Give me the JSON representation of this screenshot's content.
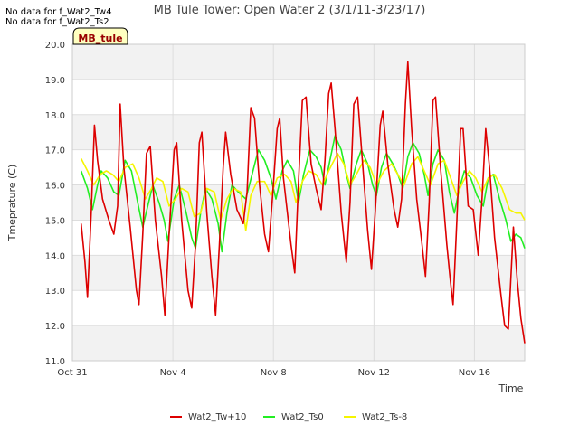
{
  "no_data_notes": [
    "No data for f_Wat2_Tw4",
    "No data for f_Wat2_Ts2"
  ],
  "site_badge": "MB_tule",
  "colors": {
    "tw10": "#dd0000",
    "ts0": "#22ee22",
    "ts8": "#f5f500",
    "band": "#f2f2f2",
    "grid": "#dddddd",
    "badge_bg": "#ffffc0",
    "badge_text": "#990000"
  },
  "chart_data": {
    "type": "line",
    "title": "MB Tule Tower: Open Water 2 (3/1/11-3/23/17)",
    "xlabel": "Time",
    "ylabel": "Tmeprature (C)",
    "xlim": [
      0,
      18
    ],
    "ylim": [
      11.0,
      20.0
    ],
    "yticks": [
      "11.0",
      "12.0",
      "13.0",
      "14.0",
      "15.0",
      "16.0",
      "17.0",
      "18.0",
      "19.0",
      "20.0"
    ],
    "xticks": [
      {
        "label": "Oct 31",
        "day": 0
      },
      {
        "label": "Nov 4",
        "day": 4
      },
      {
        "label": "Nov 8",
        "day": 8
      },
      {
        "label": "Nov 12",
        "day": 12
      },
      {
        "label": "Nov 16",
        "day": 16
      }
    ],
    "grid": true,
    "legend_position": "bottom",
    "series": [
      {
        "name": "Wat2_Tw+10",
        "color": "#dd0000",
        "points": [
          [
            0.35,
            14.9
          ],
          [
            0.5,
            13.8
          ],
          [
            0.6,
            12.8
          ],
          [
            0.75,
            15.2
          ],
          [
            0.88,
            17.7
          ],
          [
            1.0,
            16.7
          ],
          [
            1.2,
            15.6
          ],
          [
            1.45,
            15.0
          ],
          [
            1.65,
            14.6
          ],
          [
            1.8,
            15.4
          ],
          [
            1.9,
            18.3
          ],
          [
            2.05,
            16.5
          ],
          [
            2.3,
            14.8
          ],
          [
            2.55,
            13.0
          ],
          [
            2.65,
            12.6
          ],
          [
            2.8,
            14.6
          ],
          [
            2.95,
            16.9
          ],
          [
            3.1,
            17.1
          ],
          [
            3.3,
            15.0
          ],
          [
            3.55,
            13.4
          ],
          [
            3.68,
            12.3
          ],
          [
            3.85,
            14.6
          ],
          [
            4.05,
            17.0
          ],
          [
            4.15,
            17.2
          ],
          [
            4.35,
            15.0
          ],
          [
            4.6,
            13.0
          ],
          [
            4.75,
            12.5
          ],
          [
            4.9,
            14.3
          ],
          [
            5.05,
            17.2
          ],
          [
            5.15,
            17.5
          ],
          [
            5.35,
            15.2
          ],
          [
            5.55,
            13.4
          ],
          [
            5.7,
            12.3
          ],
          [
            5.85,
            14.3
          ],
          [
            6.0,
            16.5
          ],
          [
            6.1,
            17.5
          ],
          [
            6.3,
            16.3
          ],
          [
            6.55,
            15.3
          ],
          [
            6.8,
            14.9
          ],
          [
            6.95,
            15.8
          ],
          [
            7.1,
            18.2
          ],
          [
            7.25,
            17.9
          ],
          [
            7.45,
            16.0
          ],
          [
            7.65,
            14.6
          ],
          [
            7.8,
            14.1
          ],
          [
            8.0,
            16.0
          ],
          [
            8.15,
            17.6
          ],
          [
            8.25,
            17.9
          ],
          [
            8.4,
            16.2
          ],
          [
            8.7,
            14.3
          ],
          [
            8.85,
            13.5
          ],
          [
            9.0,
            16.1
          ],
          [
            9.15,
            18.4
          ],
          [
            9.3,
            18.5
          ],
          [
            9.5,
            16.6
          ],
          [
            9.7,
            15.9
          ],
          [
            9.9,
            15.3
          ],
          [
            10.05,
            16.7
          ],
          [
            10.2,
            18.6
          ],
          [
            10.3,
            18.9
          ],
          [
            10.45,
            17.6
          ],
          [
            10.7,
            15.2
          ],
          [
            10.9,
            13.8
          ],
          [
            11.05,
            15.5
          ],
          [
            11.2,
            18.3
          ],
          [
            11.35,
            18.5
          ],
          [
            11.55,
            16.6
          ],
          [
            11.75,
            14.7
          ],
          [
            11.9,
            13.6
          ],
          [
            12.05,
            15.2
          ],
          [
            12.25,
            17.7
          ],
          [
            12.35,
            18.1
          ],
          [
            12.55,
            16.6
          ],
          [
            12.8,
            15.3
          ],
          [
            12.95,
            14.8
          ],
          [
            13.1,
            15.6
          ],
          [
            13.25,
            18.3
          ],
          [
            13.35,
            19.5
          ],
          [
            13.5,
            17.6
          ],
          [
            13.7,
            15.6
          ],
          [
            13.9,
            14.4
          ],
          [
            14.05,
            13.4
          ],
          [
            14.2,
            15.5
          ],
          [
            14.35,
            18.4
          ],
          [
            14.45,
            18.5
          ],
          [
            14.65,
            16.5
          ],
          [
            14.9,
            14.3
          ],
          [
            15.05,
            13.2
          ],
          [
            15.15,
            12.6
          ],
          [
            15.3,
            15.0
          ],
          [
            15.45,
            17.6
          ],
          [
            15.55,
            17.6
          ],
          [
            15.75,
            15.4
          ],
          [
            15.95,
            15.3
          ],
          [
            16.15,
            14.0
          ],
          [
            16.3,
            15.6
          ],
          [
            16.45,
            17.6
          ],
          [
            16.6,
            16.5
          ],
          [
            16.8,
            14.5
          ],
          [
            17.05,
            12.9
          ],
          [
            17.2,
            12.0
          ],
          [
            17.35,
            11.9
          ],
          [
            17.55,
            14.8
          ],
          [
            17.7,
            13.3
          ],
          [
            17.85,
            12.2
          ],
          [
            18.0,
            11.5
          ]
        ]
      },
      {
        "name": "Wat2_Ts0",
        "color": "#22ee22",
        "points": [
          [
            0.35,
            16.4
          ],
          [
            0.6,
            15.9
          ],
          [
            0.8,
            15.3
          ],
          [
            1.0,
            16.0
          ],
          [
            1.15,
            16.4
          ],
          [
            1.4,
            16.2
          ],
          [
            1.65,
            15.8
          ],
          [
            1.85,
            15.7
          ],
          [
            2.1,
            16.7
          ],
          [
            2.35,
            16.4
          ],
          [
            2.6,
            15.5
          ],
          [
            2.8,
            14.8
          ],
          [
            3.0,
            15.4
          ],
          [
            3.2,
            16.0
          ],
          [
            3.45,
            15.5
          ],
          [
            3.65,
            15.0
          ],
          [
            3.8,
            14.4
          ],
          [
            4.05,
            15.6
          ],
          [
            4.25,
            16.0
          ],
          [
            4.5,
            15.3
          ],
          [
            4.75,
            14.5
          ],
          [
            4.9,
            14.2
          ],
          [
            5.1,
            15.2
          ],
          [
            5.3,
            15.9
          ],
          [
            5.55,
            15.6
          ],
          [
            5.8,
            14.9
          ],
          [
            5.95,
            14.1
          ],
          [
            6.15,
            15.2
          ],
          [
            6.35,
            16.0
          ],
          [
            6.6,
            15.8
          ],
          [
            6.9,
            15.6
          ],
          [
            7.15,
            16.3
          ],
          [
            7.4,
            17.0
          ],
          [
            7.65,
            16.7
          ],
          [
            7.9,
            16.2
          ],
          [
            8.1,
            15.6
          ],
          [
            8.35,
            16.4
          ],
          [
            8.55,
            16.7
          ],
          [
            8.8,
            16.4
          ],
          [
            9.0,
            15.5
          ],
          [
            9.2,
            16.3
          ],
          [
            9.45,
            17.0
          ],
          [
            9.7,
            16.8
          ],
          [
            9.9,
            16.5
          ],
          [
            10.05,
            16.0
          ],
          [
            10.25,
            16.7
          ],
          [
            10.45,
            17.4
          ],
          [
            10.7,
            17.0
          ],
          [
            10.9,
            16.3
          ],
          [
            11.05,
            15.9
          ],
          [
            11.3,
            16.6
          ],
          [
            11.5,
            17.0
          ],
          [
            11.75,
            16.6
          ],
          [
            11.95,
            16.0
          ],
          [
            12.1,
            15.7
          ],
          [
            12.3,
            16.5
          ],
          [
            12.5,
            16.9
          ],
          [
            12.75,
            16.6
          ],
          [
            12.95,
            16.3
          ],
          [
            13.15,
            15.9
          ],
          [
            13.35,
            16.8
          ],
          [
            13.55,
            17.2
          ],
          [
            13.8,
            16.9
          ],
          [
            14.0,
            16.3
          ],
          [
            14.15,
            15.7
          ],
          [
            14.35,
            16.6
          ],
          [
            14.55,
            17.0
          ],
          [
            14.8,
            16.7
          ],
          [
            15.0,
            15.8
          ],
          [
            15.2,
            15.2
          ],
          [
            15.4,
            15.9
          ],
          [
            15.6,
            16.4
          ],
          [
            15.85,
            16.2
          ],
          [
            16.1,
            15.7
          ],
          [
            16.35,
            15.4
          ],
          [
            16.55,
            16.2
          ],
          [
            16.75,
            16.3
          ],
          [
            17.0,
            15.6
          ],
          [
            17.25,
            15.0
          ],
          [
            17.45,
            14.4
          ],
          [
            17.65,
            14.6
          ],
          [
            17.85,
            14.5
          ],
          [
            18.0,
            14.2
          ]
        ]
      },
      {
        "name": "Wat2_Ts-8",
        "color": "#f5f500",
        "points": [
          [
            0.35,
            16.75
          ],
          [
            0.6,
            16.4
          ],
          [
            0.85,
            16.0
          ],
          [
            1.1,
            16.3
          ],
          [
            1.35,
            16.4
          ],
          [
            1.6,
            16.3
          ],
          [
            1.85,
            16.1
          ],
          [
            2.1,
            16.5
          ],
          [
            2.4,
            16.6
          ],
          [
            2.65,
            16.2
          ],
          [
            2.9,
            15.6
          ],
          [
            3.15,
            15.9
          ],
          [
            3.35,
            16.2
          ],
          [
            3.6,
            16.1
          ],
          [
            3.85,
            15.4
          ],
          [
            4.1,
            15.6
          ],
          [
            4.35,
            15.9
          ],
          [
            4.6,
            15.8
          ],
          [
            4.85,
            15.1
          ],
          [
            5.1,
            15.2
          ],
          [
            5.35,
            15.9
          ],
          [
            5.65,
            15.8
          ],
          [
            5.9,
            15.0
          ],
          [
            6.15,
            15.6
          ],
          [
            6.4,
            15.9
          ],
          [
            6.7,
            15.8
          ],
          [
            6.9,
            14.7
          ],
          [
            7.1,
            15.7
          ],
          [
            7.35,
            16.1
          ],
          [
            7.65,
            16.1
          ],
          [
            7.9,
            15.7
          ],
          [
            8.15,
            16.2
          ],
          [
            8.45,
            16.3
          ],
          [
            8.7,
            16.1
          ],
          [
            8.9,
            15.5
          ],
          [
            9.15,
            16.1
          ],
          [
            9.4,
            16.4
          ],
          [
            9.7,
            16.3
          ],
          [
            9.95,
            16.0
          ],
          [
            10.2,
            16.4
          ],
          [
            10.55,
            16.9
          ],
          [
            10.8,
            16.6
          ],
          [
            11.05,
            16.0
          ],
          [
            11.3,
            16.3
          ],
          [
            11.6,
            16.7
          ],
          [
            11.85,
            16.5
          ],
          [
            12.1,
            16.0
          ],
          [
            12.4,
            16.4
          ],
          [
            12.7,
            16.6
          ],
          [
            12.95,
            16.3
          ],
          [
            13.2,
            16.0
          ],
          [
            13.5,
            16.6
          ],
          [
            13.75,
            16.8
          ],
          [
            14.0,
            16.4
          ],
          [
            14.25,
            16.0
          ],
          [
            14.55,
            16.6
          ],
          [
            14.8,
            16.7
          ],
          [
            15.05,
            16.2
          ],
          [
            15.3,
            15.7
          ],
          [
            15.55,
            16.1
          ],
          [
            15.8,
            16.4
          ],
          [
            16.05,
            16.2
          ],
          [
            16.3,
            15.8
          ],
          [
            16.55,
            16.2
          ],
          [
            16.8,
            16.3
          ],
          [
            17.1,
            15.9
          ],
          [
            17.4,
            15.3
          ],
          [
            17.65,
            15.2
          ],
          [
            17.85,
            15.2
          ],
          [
            18.0,
            15.0
          ]
        ]
      }
    ]
  }
}
